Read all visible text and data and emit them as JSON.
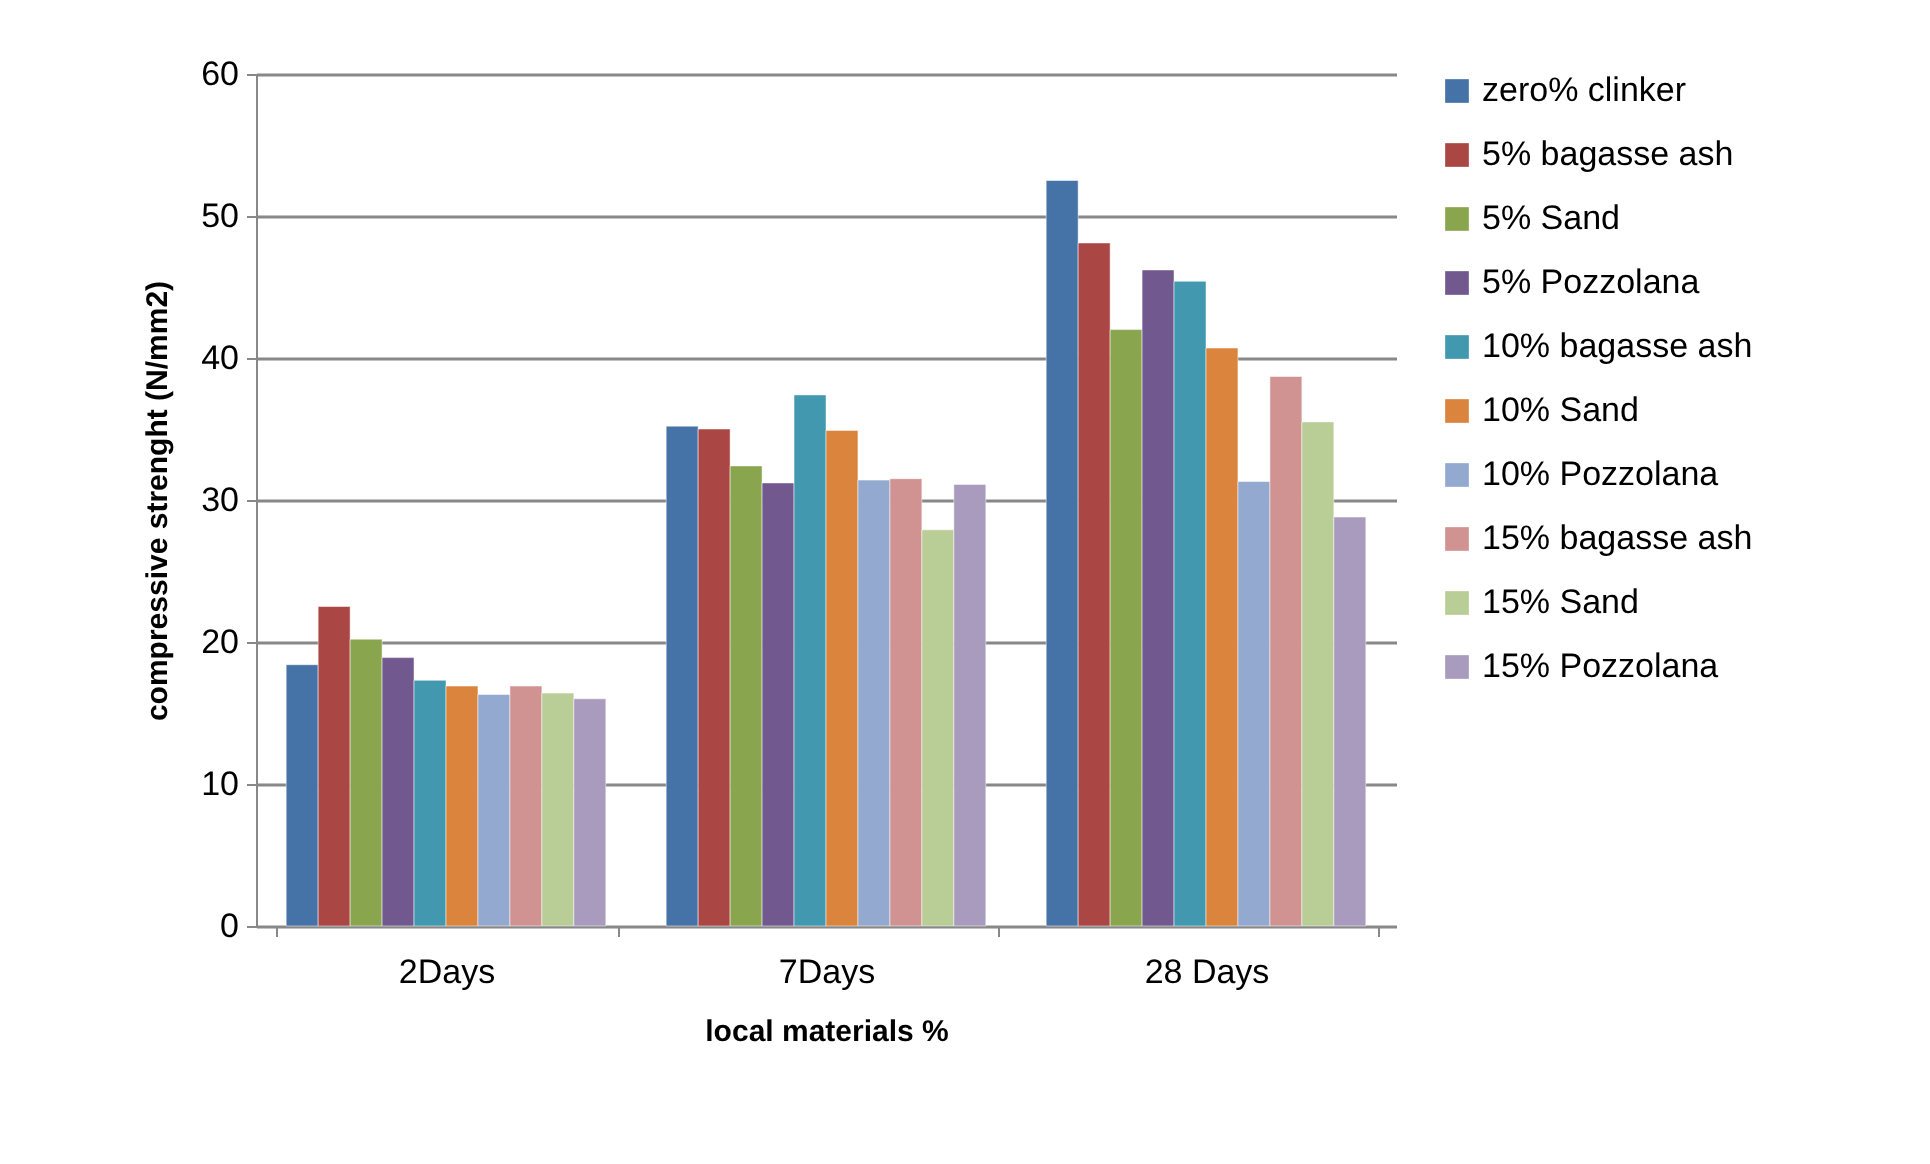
{
  "chart_data": {
    "type": "bar",
    "xlabel": "local materials %",
    "ylabel": "compressive strenght (N/mm2)",
    "categories": [
      "2Days",
      "7Days",
      "28 Days"
    ],
    "series": [
      {
        "name": "zero% clinker",
        "color": "#4572a7",
        "values": [
          18.4,
          35.2,
          52.5
        ]
      },
      {
        "name": "5% bagasse ash",
        "color": "#aa4643",
        "values": [
          22.5,
          35.0,
          48.1
        ]
      },
      {
        "name": "5% Sand",
        "color": "#89a54e",
        "values": [
          20.2,
          32.4,
          42.0
        ]
      },
      {
        "name": "5% Pozzolana",
        "color": "#71588f",
        "values": [
          18.9,
          31.2,
          46.2
        ]
      },
      {
        "name": "10% bagasse ash",
        "color": "#4198af",
        "values": [
          17.3,
          37.4,
          45.4
        ]
      },
      {
        "name": "10% Sand",
        "color": "#db843d",
        "values": [
          16.9,
          34.9,
          40.7
        ]
      },
      {
        "name": "10% Pozzolana",
        "color": "#93a9cf",
        "values": [
          16.3,
          31.4,
          31.3
        ]
      },
      {
        "name": "15% bagasse ash",
        "color": "#d19392",
        "values": [
          16.9,
          31.5,
          38.7
        ]
      },
      {
        "name": "15% Sand",
        "color": "#b9cd96",
        "values": [
          16.4,
          27.9,
          35.5
        ]
      },
      {
        "name": "15% Pozzolana",
        "color": "#a99bbd",
        "values": [
          16.0,
          31.1,
          28.8
        ]
      }
    ],
    "ylim": [
      0,
      60
    ],
    "yticks": [
      0,
      10,
      20,
      30,
      40,
      50,
      60
    ],
    "grid": "y",
    "legend": "right"
  }
}
